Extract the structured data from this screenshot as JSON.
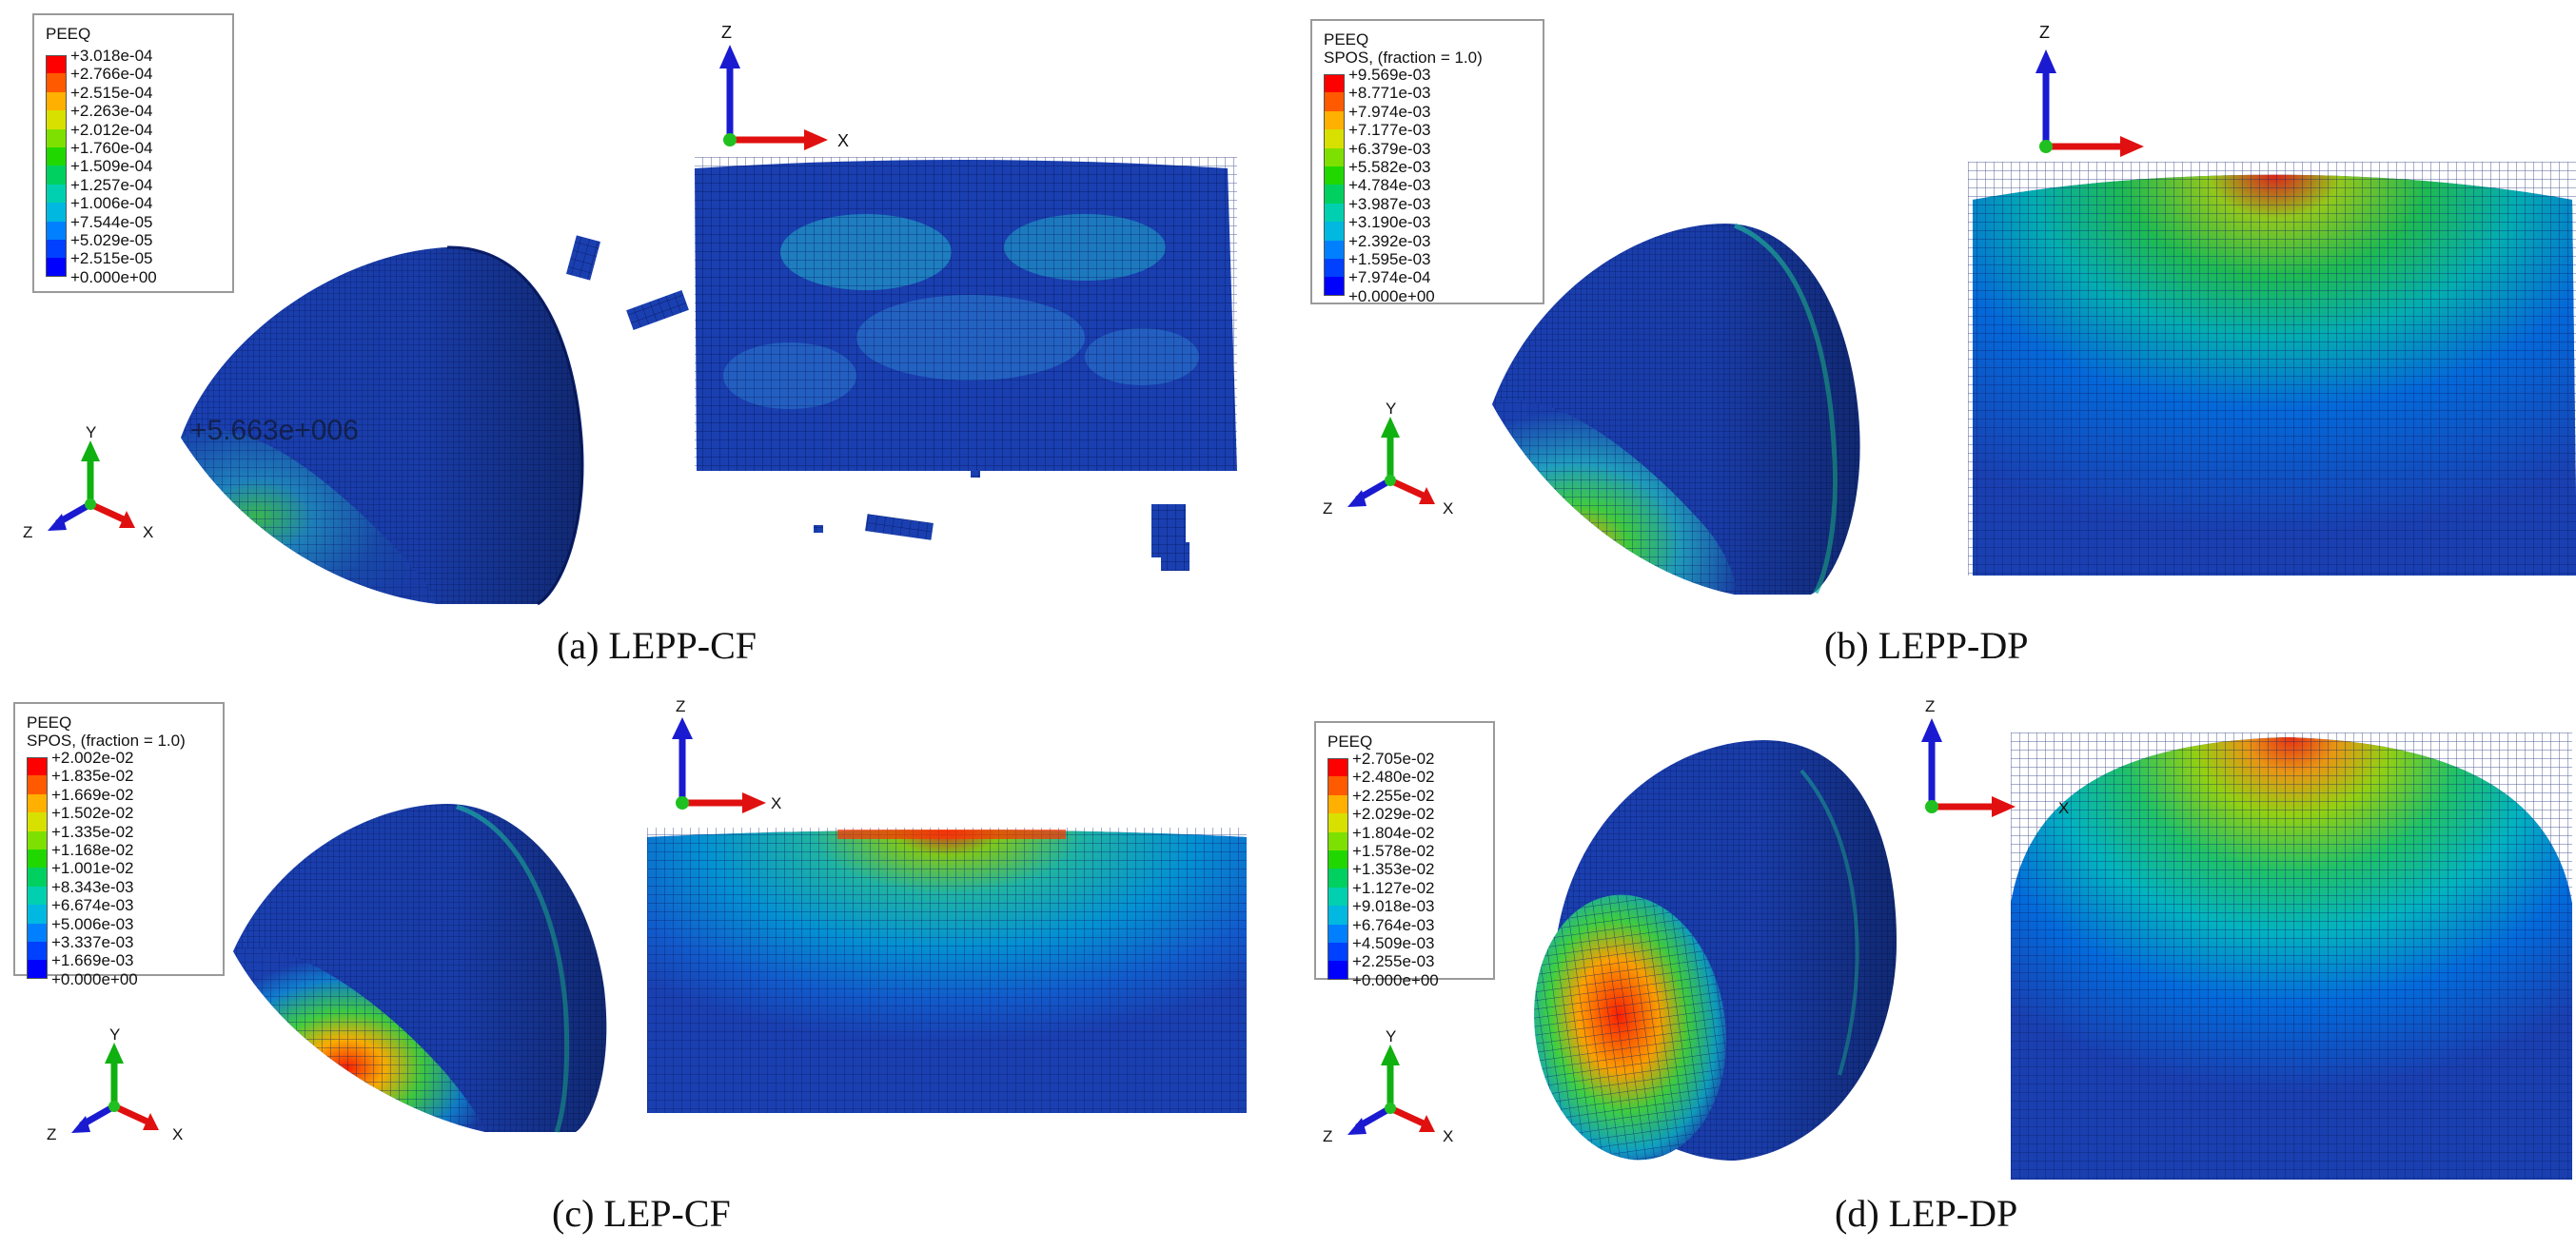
{
  "legend_colors": [
    "#ff0000",
    "#ff5a00",
    "#ffb000",
    "#d8e000",
    "#7ee000",
    "#20d800",
    "#00d060",
    "#00d0b0",
    "#00b8e0",
    "#0080ff",
    "#0040ff",
    "#0000ff"
  ],
  "axis_colors": {
    "z": "#1a1ad0",
    "x": "#e01010",
    "y": "#10b010",
    "origin": "#20c020"
  },
  "mesh_colors": {
    "base": "#1a3fb0",
    "line": "#0a1f70"
  },
  "panels": [
    {
      "id": "a",
      "caption": "(a) LEPP-CF",
      "legend": {
        "title": "PEEQ",
        "subtitle": "",
        "ticks": [
          "+3.018e-04",
          "+2.766e-04",
          "+2.515e-04",
          "+2.263e-04",
          "+2.012e-04",
          "+1.760e-04",
          "+1.509e-04",
          "+1.257e-04",
          "+1.006e-04",
          "+7.544e-05",
          "+5.029e-05",
          "+2.515e-05",
          "+0.000e+00"
        ]
      },
      "axes_3d": {
        "y": "Y",
        "z": "Z",
        "x": "X"
      },
      "axes_2d": {
        "z": "Z",
        "x": "X"
      },
      "overlay_text": "+5.663e+006"
    },
    {
      "id": "b",
      "caption": "(b) LEPP-DP",
      "legend": {
        "title": "PEEQ",
        "subtitle": "SPOS, (fraction = 1.0)",
        "ticks": [
          "+9.569e-03",
          "+8.771e-03",
          "+7.974e-03",
          "+7.177e-03",
          "+6.379e-03",
          "+5.582e-03",
          "+4.784e-03",
          "+3.987e-03",
          "+3.190e-03",
          "+2.392e-03",
          "+1.595e-03",
          "+7.974e-04",
          "+0.000e+00"
        ]
      },
      "axes_3d": {
        "y": "Y",
        "z": "Z",
        "x": "X"
      },
      "axes_2d": {
        "z": "Z",
        "x": "X"
      }
    },
    {
      "id": "c",
      "caption": "(c) LEP-CF",
      "legend": {
        "title": "PEEQ",
        "subtitle": "SPOS, (fraction = 1.0)",
        "ticks": [
          "+2.002e-02",
          "+1.835e-02",
          "+1.669e-02",
          "+1.502e-02",
          "+1.335e-02",
          "+1.168e-02",
          "+1.001e-02",
          "+8.343e-03",
          "+6.674e-03",
          "+5.006e-03",
          "+3.337e-03",
          "+1.669e-03",
          "+0.000e+00"
        ]
      },
      "axes_3d": {
        "y": "Y",
        "z": "Z",
        "x": "X"
      },
      "axes_2d": {
        "z": "Z",
        "x": "X"
      }
    },
    {
      "id": "d",
      "caption": "(d) LEP-DP",
      "legend": {
        "title": "PEEQ",
        "subtitle": "",
        "ticks": [
          "+2.705e-02",
          "+2.480e-02",
          "+2.255e-02",
          "+2.029e-02",
          "+1.804e-02",
          "+1.578e-02",
          "+1.353e-02",
          "+1.127e-02",
          "+9.018e-03",
          "+6.764e-03",
          "+4.509e-03",
          "+2.255e-03",
          "+0.000e+00"
        ]
      },
      "axes_3d": {
        "y": "Y",
        "z": "Z",
        "x": "X"
      },
      "axes_2d": {
        "z": "Z",
        "x": "X"
      }
    }
  ]
}
